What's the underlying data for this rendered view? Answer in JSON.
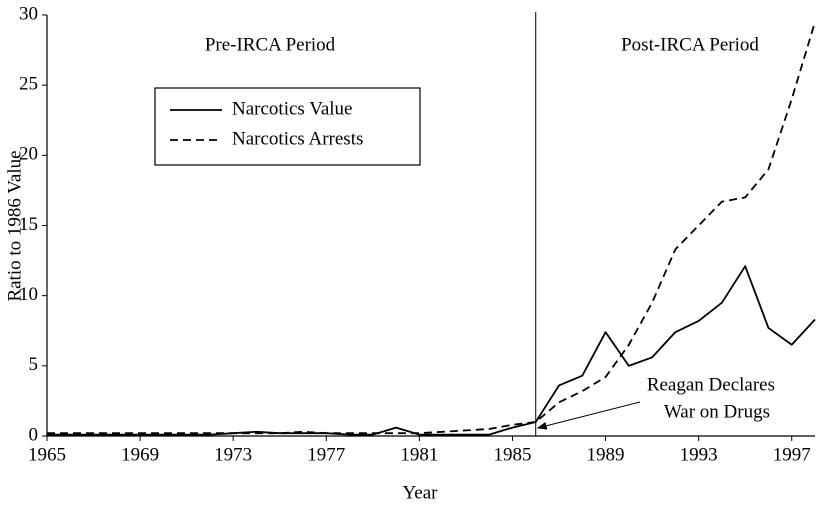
{
  "chart_data": {
    "type": "line",
    "xlabel": "Year",
    "ylabel": "Ratio to 1986 Value",
    "x": [
      1965,
      1966,
      1967,
      1968,
      1969,
      1970,
      1971,
      1972,
      1973,
      1974,
      1975,
      1976,
      1977,
      1978,
      1979,
      1980,
      1981,
      1982,
      1983,
      1984,
      1985,
      1986,
      1987,
      1988,
      1989,
      1990,
      1991,
      1992,
      1993,
      1994,
      1995,
      1996,
      1997,
      1998
    ],
    "series": [
      {
        "name": "Narcotics Value",
        "color": "#000000",
        "style": "solid",
        "values": [
          0.1,
          0.1,
          0.1,
          0.1,
          0.1,
          0.1,
          0.1,
          0.1,
          0.2,
          0.3,
          0.2,
          0.2,
          0.2,
          0.1,
          0.1,
          0.6,
          0.1,
          0.1,
          0.1,
          0.1,
          0.6,
          1.0,
          3.6,
          4.3,
          7.4,
          5.0,
          5.6,
          7.4,
          8.2,
          9.5,
          12.1,
          7.7,
          6.5,
          8.3
        ]
      },
      {
        "name": "Narcotics Arrests",
        "color": "#000000",
        "style": "dashed",
        "values": [
          0.2,
          0.2,
          0.2,
          0.2,
          0.2,
          0.2,
          0.2,
          0.2,
          0.2,
          0.2,
          0.2,
          0.3,
          0.2,
          0.2,
          0.2,
          0.2,
          0.2,
          0.3,
          0.4,
          0.5,
          0.8,
          1.0,
          2.4,
          3.2,
          4.2,
          6.5,
          9.5,
          13.3,
          15.0,
          16.7,
          17.0,
          19.0,
          24.0,
          29.5
        ]
      }
    ],
    "vline": 1986,
    "annotations": [
      "Pre-IRCA Period",
      "Post-IRCA Period",
      "Reagan Declares",
      "War on Drugs"
    ],
    "xlim": [
      1965,
      1998
    ],
    "xticks": [
      1965,
      1969,
      1973,
      1977,
      1981,
      1985,
      1989,
      1993,
      1997
    ],
    "ylim": [
      0,
      30
    ],
    "yticks": [
      0,
      5,
      10,
      15,
      20,
      25,
      30
    ]
  }
}
